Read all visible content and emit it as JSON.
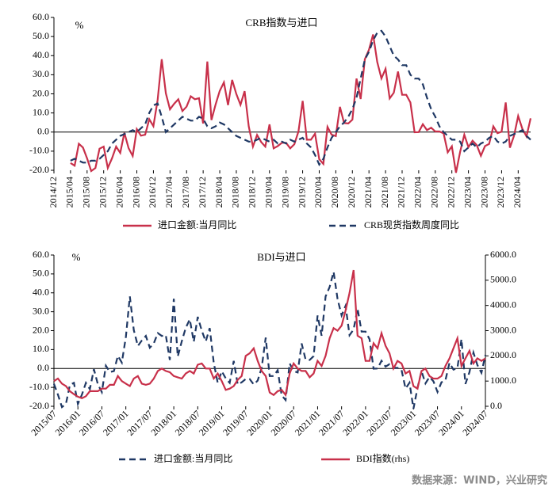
{
  "source": "数据来源：WIND，兴业研究",
  "chart_data": [
    {
      "type": "line",
      "title": "CRB指数与进口",
      "y_unit": "%",
      "legend": "bottom",
      "categories": [
        "2014/12",
        null,
        null,
        null,
        "2015/04",
        null,
        null,
        null,
        "2015/08",
        null,
        null,
        null,
        "2015/12",
        null,
        null,
        null,
        "2016/04",
        null,
        null,
        null,
        "2016/08",
        null,
        null,
        null,
        "2016/12",
        null,
        null,
        null,
        "2017/04",
        null,
        null,
        null,
        "2017/08",
        null,
        null,
        null,
        "2017/12",
        null,
        null,
        null,
        "2018/04",
        null,
        null,
        null,
        "2018/08",
        null,
        null,
        null,
        "2018/12",
        null,
        null,
        null,
        "2019/04",
        null,
        null,
        null,
        "2019/08",
        null,
        null,
        null,
        "2019/12",
        null,
        null,
        null,
        "2020/04",
        null,
        null,
        null,
        "2020/08",
        null,
        null,
        null,
        "2020/12",
        null,
        null,
        null,
        "2021/04",
        null,
        null,
        null,
        "2021/08",
        null,
        null,
        null,
        "2021/12",
        null,
        null,
        null,
        "2022/04",
        null,
        null,
        null,
        "2022/08",
        null,
        null,
        null,
        "2022/12",
        null,
        null,
        null,
        "2023/04",
        null,
        null,
        null,
        "2023/08",
        null,
        null,
        null,
        "2023/12",
        null,
        null,
        null,
        "2024/04",
        null,
        null,
        null
      ],
      "ylim": [
        -20,
        60
      ],
      "yticks": [
        {
          "value": -20,
          "label": "-20.0"
        },
        {
          "value": -10,
          "label": "-10.0"
        },
        {
          "value": 0,
          "label": "0.0"
        },
        {
          "value": 10,
          "label": "10.0"
        },
        {
          "value": 20,
          "label": "20.0"
        },
        {
          "value": 30,
          "label": "30.0"
        },
        {
          "value": 40,
          "label": "40.0"
        },
        {
          "value": 50,
          "label": "50.0"
        },
        {
          "value": 60,
          "label": "60.0"
        }
      ],
      "series": [
        {
          "name": "进口金额:当月同比",
          "color": "#c8304a",
          "dash": false,
          "values": [
            null,
            null,
            null,
            null,
            -16.2,
            -17.6,
            -6.1,
            -8.1,
            -13.8,
            -20.4,
            -18.8,
            -8.7,
            -7.6,
            -18.8,
            -13.8,
            -7.6,
            -10.9,
            -0.4,
            -8.4,
            -12.5,
            1.5,
            -1.9,
            -1.4,
            6.7,
            3.1,
            16.7,
            38.1,
            20.3,
            11.9,
            14.8,
            17.2,
            11.0,
            13.3,
            18.7,
            17.2,
            17.7,
            4.5,
            36.9,
            6.3,
            14.4,
            21.5,
            26.0,
            14.1,
            27.3,
            20.0,
            14.3,
            21.4,
            3.0,
            -7.6,
            -1.5,
            -5.2,
            -7.6,
            4.0,
            -8.5,
            -7.3,
            -5.6,
            -5.6,
            -8.5,
            -6.4,
            0.3,
            16.3,
            -4.0,
            -4.0,
            -0.9,
            -14.2,
            -16.7,
            2.7,
            -1.4,
            -2.1,
            13.2,
            4.7,
            4.5,
            6.5,
            28.0,
            17.3,
            38.1,
            43.1,
            51.1,
            36.7,
            28.1,
            33.1,
            17.6,
            20.6,
            31.7,
            19.5,
            19.5,
            15.5,
            -0.1,
            0.0,
            4.1,
            1.0,
            2.3,
            0.3,
            0.3,
            -0.7,
            -10.6,
            -7.5,
            -21.3,
            -10.2,
            -1.4,
            -7.9,
            -4.5,
            -6.8,
            -12.4,
            -7.3,
            -6.2,
            3.0,
            -0.6,
            0.2,
            15.5,
            -8.2,
            -1.9,
            8.4,
            1.8,
            -2.3,
            7.2
          ]
        },
        {
          "name": "CRB现货指数周度同比",
          "color": "#1f3864",
          "dash": true,
          "values": [
            null,
            null,
            null,
            null,
            -15,
            -14,
            -15,
            -16,
            -16,
            -15,
            -15,
            -14,
            -12,
            -10,
            -6,
            -4,
            -2,
            -1,
            0,
            1,
            0,
            2,
            4,
            10,
            14,
            15,
            8,
            0,
            2,
            4,
            6,
            8,
            7,
            6,
            6,
            8,
            7,
            3,
            2,
            3,
            5,
            4,
            2,
            0,
            -2,
            -3,
            -4,
            -5,
            -5,
            -4,
            -3,
            -4,
            -5,
            -4,
            -6,
            -5,
            -6,
            -4,
            -5,
            -4,
            -3,
            -6,
            -8,
            -12,
            -17,
            -14,
            -8,
            -3,
            0,
            3,
            5,
            8,
            12,
            18,
            28,
            38,
            42,
            48,
            52,
            53,
            50,
            45,
            40,
            38,
            35,
            35,
            30,
            28,
            28,
            25,
            18,
            12,
            8,
            3,
            0,
            -2,
            -4,
            -4,
            -5,
            -10,
            -8,
            -6,
            -8,
            -6,
            -5,
            -3,
            -2,
            -5,
            -6,
            -5,
            -2,
            -1,
            0,
            1,
            -2,
            -4
          ]
        }
      ]
    },
    {
      "type": "line",
      "title": "BDI与进口",
      "y_unit": "%",
      "legend": "bottom",
      "categories": [
        "2015/07",
        null,
        null,
        null,
        null,
        null,
        "2016/01",
        null,
        null,
        null,
        null,
        null,
        "2016/07",
        null,
        null,
        null,
        null,
        null,
        "2017/01",
        null,
        null,
        null,
        null,
        null,
        "2017/07",
        null,
        null,
        null,
        null,
        null,
        "2018/01",
        null,
        null,
        null,
        null,
        null,
        "2018/07",
        null,
        null,
        null,
        null,
        null,
        "2019/01",
        null,
        null,
        null,
        null,
        null,
        "2019/07",
        null,
        null,
        null,
        null,
        null,
        "2020/01",
        null,
        null,
        null,
        null,
        null,
        "2020/07",
        null,
        null,
        null,
        null,
        null,
        "2021/01",
        null,
        null,
        null,
        null,
        null,
        "2021/07",
        null,
        null,
        null,
        null,
        null,
        "2022/01",
        null,
        null,
        null,
        null,
        null,
        "2022/07",
        null,
        null,
        null,
        null,
        null,
        "2023/01",
        null,
        null,
        null,
        null,
        null,
        "2023/07",
        null,
        null,
        null,
        null,
        null,
        "2024/01",
        null,
        null,
        null,
        null,
        null,
        "2024/07"
      ],
      "ylim": [
        -20,
        60
      ],
      "yticks": [
        {
          "value": -20,
          "label": "-20.0"
        },
        {
          "value": -10,
          "label": "-10.0"
        },
        {
          "value": 0,
          "label": "0.0"
        },
        {
          "value": 10,
          "label": "10.0"
        },
        {
          "value": 20,
          "label": "20.0"
        },
        {
          "value": 30,
          "label": "30.0"
        },
        {
          "value": 40,
          "label": "40.0"
        },
        {
          "value": 50,
          "label": "50.0"
        },
        {
          "value": 60,
          "label": "60.0"
        }
      ],
      "y2lim": [
        0,
        6000
      ],
      "y2ticks": [
        {
          "value": 0,
          "label": "0.0"
        },
        {
          "value": 1000,
          "label": "1000.0"
        },
        {
          "value": 2000,
          "label": "2000.0"
        },
        {
          "value": 3000,
          "label": "3000.0"
        },
        {
          "value": 4000,
          "label": "4000.0"
        },
        {
          "value": 5000,
          "label": "5000.0"
        },
        {
          "value": 6000,
          "label": "6000.0"
        }
      ],
      "series": [
        {
          "name": "进口金额:当月同比",
          "color": "#1f3864",
          "dash": true,
          "values": [
            -8.1,
            -13.8,
            -20.4,
            -18.8,
            -8.7,
            -7.6,
            -18.8,
            -13.8,
            -7.6,
            -10.9,
            -0.4,
            -8.4,
            -12.5,
            1.5,
            -1.9,
            -1.4,
            6.7,
            3.1,
            16.7,
            38.1,
            20.3,
            11.9,
            14.8,
            17.2,
            11.0,
            13.3,
            18.7,
            17.2,
            17.7,
            4.5,
            36.9,
            6.3,
            14.4,
            21.5,
            26.0,
            14.1,
            27.3,
            20.0,
            14.3,
            21.4,
            3.0,
            -7.6,
            -1.5,
            -5.2,
            -7.6,
            4.0,
            -8.5,
            -7.3,
            -5.6,
            -5.6,
            -8.5,
            -6.4,
            0.3,
            16.3,
            -4.0,
            -4.0,
            -0.9,
            -14.2,
            -16.7,
            2.7,
            -1.4,
            -2.1,
            13.2,
            4.7,
            4.5,
            6.5,
            28.0,
            17.3,
            38.1,
            43.1,
            51.1,
            36.7,
            28.1,
            33.1,
            17.6,
            20.6,
            31.7,
            19.5,
            19.5,
            15.5,
            -0.1,
            0.0,
            4.1,
            1.0,
            2.3,
            0.3,
            0.3,
            -0.7,
            -10.6,
            -7.5,
            -21.3,
            -10.2,
            -1.4,
            -7.9,
            -4.5,
            -6.8,
            -12.4,
            -7.3,
            -6.2,
            3.0,
            -0.6,
            0.2,
            15.5,
            -8.2,
            -1.9,
            8.4,
            1.8,
            -2.3,
            7.2
          ]
        },
        {
          "name": "BDI指数(rhs)",
          "color": "#c8304a",
          "dash": false,
          "axis": "y2",
          "values": [
            1000,
            1100,
            900,
            800,
            600,
            480,
            380,
            320,
            400,
            600,
            600,
            600,
            700,
            700,
            850,
            850,
            1200,
            1000,
            900,
            800,
            1100,
            1200,
            900,
            850,
            900,
            1100,
            1400,
            1500,
            1400,
            1350,
            1200,
            1150,
            1100,
            1300,
            1400,
            1300,
            1650,
            1700,
            1500,
            1500,
            1100,
            1300,
            1000,
            650,
            700,
            800,
            1050,
            1200,
            2000,
            2100,
            2300,
            1800,
            1400,
            1200,
            550,
            450,
            600,
            650,
            450,
            1300,
            1700,
            1500,
            1400,
            1400,
            1150,
            1300,
            1800,
            1600,
            2000,
            2700,
            3100,
            3000,
            3200,
            3800,
            4500,
            5400,
            2800,
            2700,
            1800,
            1800,
            2500,
            2300,
            2900,
            2400,
            2100,
            1500,
            1800,
            1700,
            1300,
            1400,
            800,
            700,
            1400,
            1500,
            1200,
            1100,
            1100,
            1200,
            1600,
            1900,
            2300,
            2700,
            1600,
            1900,
            2200,
            1700,
            1900,
            1800,
            1900
          ]
        }
      ]
    }
  ]
}
